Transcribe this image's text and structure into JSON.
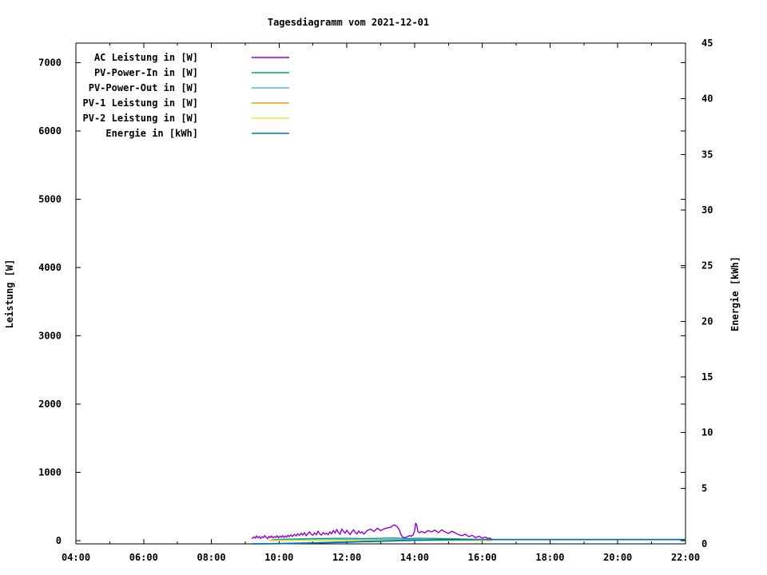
{
  "window": {
    "title": "Tagesdiagramm vom 2021-12-01"
  },
  "chart_data": {
    "type": "line",
    "title": "Tagesdiagramm vom 2021-12-01",
    "xlabel": "",
    "ylabel": "Leistung [W]",
    "y2label": "Energie [kWh]",
    "grid": false,
    "legend_position": "top-left-inside",
    "x_range": [
      4,
      22
    ],
    "y_range": [
      -47,
      7287
    ],
    "y2_range": [
      0,
      45
    ],
    "x_ticks": {
      "major_values": [
        4,
        6,
        8,
        10,
        12,
        14,
        16,
        18,
        20,
        22
      ],
      "major_labels": [
        "04:00",
        "06:00",
        "08:00",
        "10:00",
        "12:00",
        "14:00",
        "16:00",
        "18:00",
        "20:00",
        "22:00"
      ],
      "minor_values": [
        5,
        7,
        9,
        11,
        13,
        15,
        17,
        19,
        21
      ]
    },
    "y_ticks": {
      "values": [
        0,
        1000,
        2000,
        3000,
        4000,
        5000,
        6000,
        7000
      ],
      "labels": [
        "0",
        "1000",
        "2000",
        "3000",
        "4000",
        "5000",
        "6000",
        "7000"
      ]
    },
    "y2_ticks": {
      "values": [
        0,
        5,
        10,
        15,
        20,
        25,
        30,
        35,
        40,
        45
      ],
      "labels": [
        "0",
        "5",
        "10",
        "15",
        "20",
        "25",
        "30",
        "35",
        "40",
        "45"
      ]
    },
    "series": [
      {
        "name": "AC Leistung in [W]",
        "color": "#9400D3",
        "axis": "y1",
        "width": 1.4,
        "data": [
          [
            9.2,
            25
          ],
          [
            9.25,
            55
          ],
          [
            9.3,
            38
          ],
          [
            9.33,
            68
          ],
          [
            9.37,
            42
          ],
          [
            9.42,
            60
          ],
          [
            9.46,
            33
          ],
          [
            9.5,
            58
          ],
          [
            9.54,
            45
          ],
          [
            9.58,
            72
          ],
          [
            9.62,
            48
          ],
          [
            9.66,
            30
          ],
          [
            9.7,
            62
          ],
          [
            9.74,
            44
          ],
          [
            9.78,
            68
          ],
          [
            9.82,
            40
          ],
          [
            9.86,
            58
          ],
          [
            9.9,
            47
          ],
          [
            9.94,
            70
          ],
          [
            9.98,
            42
          ],
          [
            10.02,
            64
          ],
          [
            10.06,
            50
          ],
          [
            10.1,
            74
          ],
          [
            10.14,
            46
          ],
          [
            10.18,
            66
          ],
          [
            10.22,
            52
          ],
          [
            10.26,
            78
          ],
          [
            10.3,
            58
          ],
          [
            10.35,
            84
          ],
          [
            10.4,
            62
          ],
          [
            10.45,
            92
          ],
          [
            10.5,
            70
          ],
          [
            10.55,
            100
          ],
          [
            10.6,
            76
          ],
          [
            10.65,
            108
          ],
          [
            10.7,
            84
          ],
          [
            10.75,
            118
          ],
          [
            10.8,
            72
          ],
          [
            10.85,
            104
          ],
          [
            10.9,
            128
          ],
          [
            10.95,
            92
          ],
          [
            11.0,
            80
          ],
          [
            11.05,
            114
          ],
          [
            11.1,
            88
          ],
          [
            11.15,
            138
          ],
          [
            11.2,
            98
          ],
          [
            11.25,
            84
          ],
          [
            11.3,
            118
          ],
          [
            11.35,
            94
          ],
          [
            11.4,
            108
          ],
          [
            11.45,
            88
          ],
          [
            11.5,
            128
          ],
          [
            11.55,
            100
          ],
          [
            11.6,
            148
          ],
          [
            11.65,
            112
          ],
          [
            11.7,
            162
          ],
          [
            11.75,
            122
          ],
          [
            11.8,
            94
          ],
          [
            11.85,
            168
          ],
          [
            11.9,
            138
          ],
          [
            11.95,
            108
          ],
          [
            12.0,
            152
          ],
          [
            12.05,
            118
          ],
          [
            12.1,
            90
          ],
          [
            12.15,
            132
          ],
          [
            12.2,
            158
          ],
          [
            12.25,
            118
          ],
          [
            12.3,
            98
          ],
          [
            12.35,
            142
          ],
          [
            12.4,
            112
          ],
          [
            12.45,
            128
          ],
          [
            12.5,
            96
          ],
          [
            12.55,
            122
          ],
          [
            12.6,
            148
          ],
          [
            12.7,
            168
          ],
          [
            12.8,
            134
          ],
          [
            12.9,
            182
          ],
          [
            13.0,
            148
          ],
          [
            13.1,
            172
          ],
          [
            13.2,
            188
          ],
          [
            13.3,
            196
          ],
          [
            13.35,
            220
          ],
          [
            13.4,
            230
          ],
          [
            13.45,
            216
          ],
          [
            13.5,
            198
          ],
          [
            13.55,
            158
          ],
          [
            13.6,
            88
          ],
          [
            13.65,
            54
          ],
          [
            13.7,
            42
          ],
          [
            13.75,
            50
          ],
          [
            13.8,
            58
          ],
          [
            13.85,
            74
          ],
          [
            13.9,
            64
          ],
          [
            13.95,
            80
          ],
          [
            14.0,
            140
          ],
          [
            14.03,
            252
          ],
          [
            14.06,
            238
          ],
          [
            14.1,
            128
          ],
          [
            14.15,
            118
          ],
          [
            14.2,
            134
          ],
          [
            14.3,
            114
          ],
          [
            14.4,
            148
          ],
          [
            14.5,
            128
          ],
          [
            14.6,
            154
          ],
          [
            14.7,
            118
          ],
          [
            14.8,
            158
          ],
          [
            14.9,
            128
          ],
          [
            15.0,
            104
          ],
          [
            15.1,
            138
          ],
          [
            15.2,
            112
          ],
          [
            15.3,
            88
          ],
          [
            15.4,
            74
          ],
          [
            15.5,
            94
          ],
          [
            15.6,
            58
          ],
          [
            15.7,
            78
          ],
          [
            15.8,
            44
          ],
          [
            15.9,
            64
          ],
          [
            16.0,
            38
          ],
          [
            16.1,
            52
          ],
          [
            16.17,
            28
          ],
          [
            16.22,
            38
          ],
          [
            16.27,
            22
          ]
        ]
      },
      {
        "name": "PV-Power-In in [W]",
        "color": "#009E73",
        "axis": "y1",
        "width": 1.4,
        "data": [
          [
            9.7,
            0
          ],
          [
            9.85,
            14
          ],
          [
            10.0,
            18
          ],
          [
            10.3,
            22
          ],
          [
            10.6,
            26
          ],
          [
            11.0,
            30
          ],
          [
            11.5,
            32
          ],
          [
            12.0,
            34
          ],
          [
            12.5,
            30
          ],
          [
            13.0,
            34
          ],
          [
            13.4,
            38
          ],
          [
            13.8,
            30
          ],
          [
            14.1,
            36
          ],
          [
            14.5,
            32
          ],
          [
            15.0,
            28
          ],
          [
            15.5,
            22
          ],
          [
            16.0,
            16
          ],
          [
            16.3,
            8
          ]
        ]
      },
      {
        "name": "PV-Power-Out in [W]",
        "color": "#56B4E9",
        "axis": "y1",
        "width": 1.4,
        "data": [
          [
            9.7,
            0
          ],
          [
            10.0,
            8
          ],
          [
            10.5,
            10
          ],
          [
            11.0,
            12
          ],
          [
            11.5,
            14
          ],
          [
            12.0,
            15
          ],
          [
            12.5,
            13
          ],
          [
            13.0,
            15
          ],
          [
            13.5,
            16
          ],
          [
            14.0,
            15
          ],
          [
            14.5,
            13
          ],
          [
            15.0,
            11
          ],
          [
            15.5,
            9
          ],
          [
            16.0,
            6
          ],
          [
            16.3,
            3
          ]
        ]
      },
      {
        "name": "PV-1 Leistung in [W]",
        "color": "#E69F00",
        "axis": "y1",
        "width": 1.4,
        "data": [
          [
            9.7,
            0
          ],
          [
            10.5,
            3
          ],
          [
            11.5,
            4
          ],
          [
            12.5,
            4
          ],
          [
            13.5,
            5
          ],
          [
            14.5,
            4
          ],
          [
            15.5,
            3
          ],
          [
            16.3,
            1
          ]
        ]
      },
      {
        "name": "PV-2 Leistung in [W]",
        "color": "#F0E442",
        "axis": "y1",
        "width": 1.4,
        "data": [
          [
            9.7,
            0
          ],
          [
            10.5,
            2
          ],
          [
            11.5,
            3
          ],
          [
            12.5,
            3
          ],
          [
            13.5,
            4
          ],
          [
            14.5,
            3
          ],
          [
            15.5,
            2
          ],
          [
            16.3,
            1
          ]
        ]
      },
      {
        "name": "Energie in [kWh]",
        "color": "#0072B2",
        "axis": "y2",
        "width": 1.8,
        "data": [
          [
            9.2,
            0
          ],
          [
            9.7,
            0.01
          ],
          [
            10.0,
            0.02
          ],
          [
            10.5,
            0.05
          ],
          [
            11.0,
            0.08
          ],
          [
            11.5,
            0.12
          ],
          [
            12.0,
            0.16
          ],
          [
            12.5,
            0.2
          ],
          [
            13.0,
            0.24
          ],
          [
            13.5,
            0.29
          ],
          [
            14.0,
            0.32
          ],
          [
            14.5,
            0.35
          ],
          [
            15.0,
            0.37
          ],
          [
            15.5,
            0.38
          ],
          [
            16.0,
            0.39
          ],
          [
            16.3,
            0.39
          ],
          [
            22.0,
            0.39
          ]
        ]
      }
    ]
  }
}
